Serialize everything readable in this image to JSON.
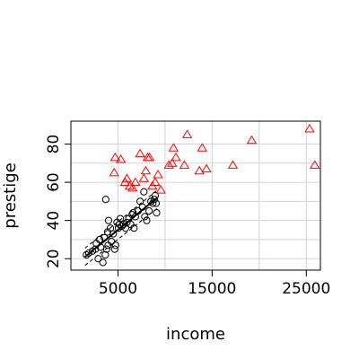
{
  "chart_data": {
    "type": "scatter",
    "xlabel": "income",
    "ylabel": "prestige",
    "xlim": [
      0,
      26500
    ],
    "ylim": [
      14,
      92
    ],
    "x_ticks": [
      5000,
      15000,
      25000
    ],
    "x_tick_labels": [
      "5000",
      "15000",
      "25000"
    ],
    "y_ticks": [
      20,
      40,
      60,
      80
    ],
    "y_tick_labels": [
      "20",
      "40",
      "60",
      "80"
    ],
    "x_grid": [
      5000,
      10000,
      15000,
      20000,
      25000
    ],
    "y_grid": [
      20,
      30,
      40,
      50,
      60,
      70,
      80
    ],
    "grid": true,
    "colors": {
      "series_1": "#000000",
      "series_2": "#ff0000",
      "grid": "#d3d3d3"
    },
    "series": [
      {
        "marker": "circle",
        "color": "#000000",
        "points": [
          [
            1650,
            22
          ],
          [
            1900,
            23
          ],
          [
            2300,
            24
          ],
          [
            2600,
            25
          ],
          [
            2700,
            28
          ],
          [
            2900,
            20
          ],
          [
            3050,
            30
          ],
          [
            3150,
            26
          ],
          [
            3400,
            18
          ],
          [
            3550,
            31
          ],
          [
            3650,
            22
          ],
          [
            3800,
            25
          ],
          [
            3900,
            34
          ],
          [
            3950,
            27
          ],
          [
            3700,
            51
          ],
          [
            4000,
            40
          ],
          [
            4200,
            36
          ],
          [
            4300,
            29
          ],
          [
            4500,
            33
          ],
          [
            4650,
            25
          ],
          [
            4750,
            27
          ],
          [
            4900,
            39
          ],
          [
            5050,
            36
          ],
          [
            5150,
            38
          ],
          [
            5250,
            41
          ],
          [
            5400,
            37
          ],
          [
            5600,
            38
          ],
          [
            5800,
            36
          ],
          [
            5950,
            39
          ],
          [
            6150,
            41
          ],
          [
            6350,
            38
          ],
          [
            6500,
            43
          ],
          [
            6600,
            44
          ],
          [
            6700,
            36
          ],
          [
            6850,
            42
          ],
          [
            7150,
            45
          ],
          [
            7350,
            50
          ],
          [
            7600,
            47
          ],
          [
            7750,
            55
          ],
          [
            7850,
            42
          ],
          [
            8050,
            40
          ],
          [
            8300,
            45
          ],
          [
            8500,
            50
          ],
          [
            8700,
            49
          ],
          [
            8850,
            51
          ],
          [
            8950,
            53
          ],
          [
            9050,
            49
          ],
          [
            9100,
            44
          ]
        ]
      },
      {
        "marker": "triangle",
        "color": "#ff0000",
        "points": [
          [
            4600,
            65
          ],
          [
            4700,
            73
          ],
          [
            5300,
            72
          ],
          [
            5750,
            60
          ],
          [
            5950,
            62
          ],
          [
            6250,
            58
          ],
          [
            6550,
            57
          ],
          [
            6850,
            60
          ],
          [
            7350,
            75
          ],
          [
            7750,
            62
          ],
          [
            7950,
            66
          ],
          [
            8150,
            73
          ],
          [
            8350,
            73
          ],
          [
            8650,
            58
          ],
          [
            8950,
            60
          ],
          [
            9250,
            64
          ],
          [
            9550,
            56
          ],
          [
            10400,
            69
          ],
          [
            10750,
            70
          ],
          [
            10900,
            78
          ],
          [
            11150,
            73
          ],
          [
            12050,
            69
          ],
          [
            12350,
            85
          ],
          [
            13650,
            66
          ],
          [
            13950,
            78
          ],
          [
            14400,
            67
          ],
          [
            17200,
            69
          ],
          [
            19200,
            82
          ],
          [
            25350,
            88
          ],
          [
            25900,
            69
          ]
        ]
      }
    ],
    "fit_line": {
      "x": [
        1500,
        9200
      ],
      "y": [
        21,
        52
      ],
      "color": "#000000"
    },
    "band_lower": {
      "x": [
        1500,
        9200
      ],
      "y": [
        16.5,
        46.5
      ]
    },
    "band_upper": {
      "x": [
        1500,
        9200
      ],
      "y": [
        25.5,
        56
      ]
    }
  }
}
